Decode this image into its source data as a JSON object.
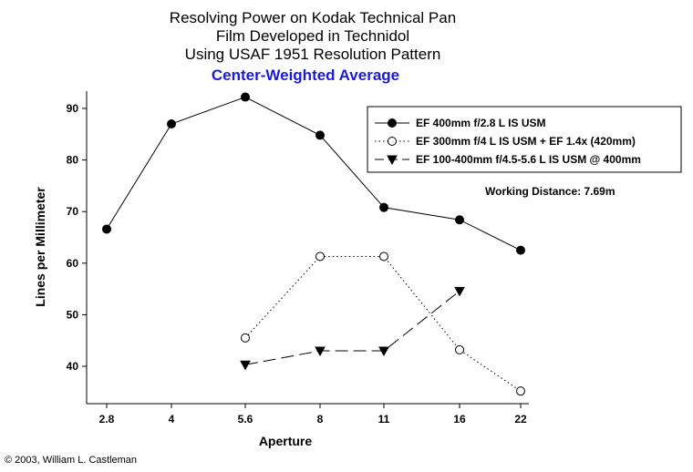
{
  "chart_data": {
    "type": "line",
    "title_lines": [
      "Resolving Power on Kodak Technical Pan",
      "Film Developed in Technidol",
      "Using USAF 1951 Resolution Pattern"
    ],
    "subtitle": "Center-Weighted Average",
    "xlabel": "Aperture",
    "ylabel": "Lines per Millimeter",
    "categories": [
      "2.8",
      "4",
      "5.6",
      "8",
      "11",
      "16",
      "22"
    ],
    "ylim": [
      33,
      96
    ],
    "yticks": [
      40,
      50,
      60,
      70,
      80,
      90
    ],
    "grid": false,
    "legend_position": "top-right",
    "series": [
      {
        "name": "EF 400mm f/2.8 L IS USM",
        "values": [
          66.6,
          87.0,
          92.2,
          84.8,
          70.8,
          68.4,
          62.5
        ],
        "marker": "filled-circle",
        "line": "solid"
      },
      {
        "name": "EF 300mm f/4 L IS USM + EF 1.4x (420mm)",
        "values": [
          null,
          null,
          45.5,
          61.3,
          61.3,
          43.2,
          35.2
        ],
        "marker": "open-circle",
        "line": "dotted"
      },
      {
        "name": "EF 100-400mm f/4.5-5.6 L IS USM @ 400mm",
        "values": [
          null,
          null,
          40.3,
          43.0,
          43.0,
          54.6,
          null
        ],
        "marker": "filled-triangle-down",
        "line": "dashed"
      }
    ],
    "annotation": "Working Distance: 7.69m"
  },
  "footer": {
    "copyright": "© 2003, William L. Castleman"
  }
}
